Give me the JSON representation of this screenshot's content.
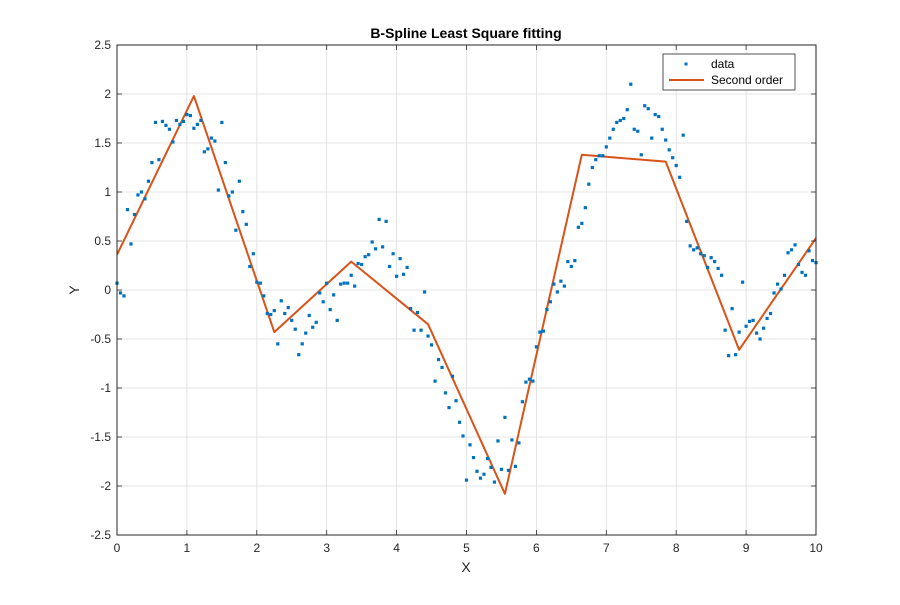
{
  "chart_data": {
    "type": "line",
    "title": "B-Spline Least Square fitting",
    "xlabel": "X",
    "ylabel": "Y",
    "xlim": [
      0,
      10
    ],
    "ylim": [
      -2.5,
      2.5
    ],
    "xticks": [
      0,
      1,
      2,
      3,
      4,
      5,
      6,
      7,
      8,
      9,
      10
    ],
    "yticks": [
      2.5,
      2,
      1.5,
      1,
      0.5,
      0,
      -0.5,
      -1,
      -1.5,
      -2,
      -2.5
    ],
    "xtick_labels": [
      "0",
      "1",
      "2",
      "3",
      "4",
      "5",
      "6",
      "7",
      "8",
      "9",
      "10"
    ],
    "ytick_labels": [
      "2.5",
      "2",
      "1.5",
      "1",
      "0.5",
      "0",
      "-0.5",
      "-1",
      "-1.5",
      "-2",
      "-2.5"
    ],
    "grid": true,
    "legend_position": "top-right",
    "legend": [
      "data",
      "Second order"
    ],
    "series": [
      {
        "name": "data",
        "type": "scatter",
        "color": "#0072BD",
        "x": [
          0.0,
          0.05,
          0.1,
          0.15,
          0.2,
          0.25,
          0.3,
          0.35,
          0.4,
          0.45,
          0.5,
          0.55,
          0.6,
          0.65,
          0.7,
          0.75,
          0.8,
          0.85,
          0.9,
          0.95,
          1.0,
          1.05,
          1.1,
          1.15,
          1.2,
          1.25,
          1.3,
          1.35,
          1.4,
          1.45,
          1.5,
          1.55,
          1.6,
          1.65,
          1.7,
          1.75,
          1.8,
          1.85,
          1.9,
          1.95,
          2.0,
          2.05,
          2.1,
          2.15,
          2.2,
          2.25,
          2.3,
          2.35,
          2.4,
          2.45,
          2.5,
          2.55,
          2.6,
          2.65,
          2.7,
          2.75,
          2.8,
          2.85,
          2.9,
          2.95,
          3.0,
          3.05,
          3.1,
          3.15,
          3.2,
          3.25,
          3.3,
          3.35,
          3.4,
          3.45,
          3.5,
          3.55,
          3.6,
          3.65,
          3.7,
          3.75,
          3.8,
          3.85,
          3.9,
          3.95,
          4.0,
          4.05,
          4.1,
          4.15,
          4.2,
          4.25,
          4.3,
          4.35,
          4.4,
          4.45,
          4.5,
          4.55,
          4.6,
          4.65,
          4.7,
          4.75,
          4.8,
          4.85,
          4.9,
          4.95,
          5.0,
          5.05,
          5.1,
          5.15,
          5.2,
          5.25,
          5.3,
          5.35,
          5.4,
          5.45,
          5.5,
          5.55,
          5.6,
          5.65,
          5.7,
          5.75,
          5.8,
          5.85,
          5.9,
          5.95,
          6.0,
          6.05,
          6.1,
          6.15,
          6.2,
          6.25,
          6.3,
          6.35,
          6.4,
          6.45,
          6.5,
          6.55,
          6.6,
          6.65,
          6.7,
          6.75,
          6.8,
          6.85,
          6.9,
          6.95,
          7.0,
          7.05,
          7.1,
          7.15,
          7.2,
          7.25,
          7.3,
          7.35,
          7.4,
          7.45,
          7.5,
          7.55,
          7.6,
          7.65,
          7.7,
          7.75,
          7.8,
          7.85,
          7.9,
          7.95,
          8.0,
          8.05,
          8.1,
          8.15,
          8.2,
          8.25,
          8.3,
          8.35,
          8.4,
          8.45,
          8.5,
          8.55,
          8.6,
          8.65,
          8.7,
          8.75,
          8.8,
          8.85,
          8.9,
          8.95,
          9.0,
          9.05,
          9.1,
          9.15,
          9.2,
          9.25,
          9.3,
          9.35,
          9.4,
          9.45,
          9.5,
          9.55,
          9.6,
          9.65,
          9.7,
          9.75,
          9.8,
          9.85,
          9.9,
          9.95,
          10.0
        ],
        "y": [
          0.07,
          -0.03,
          -0.06,
          0.82,
          0.47,
          0.77,
          0.97,
          1.0,
          0.93,
          1.11,
          1.3,
          1.71,
          1.33,
          1.72,
          1.68,
          1.64,
          1.51,
          1.73,
          1.69,
          1.72,
          1.79,
          1.78,
          1.65,
          1.69,
          1.73,
          1.41,
          1.44,
          1.55,
          1.52,
          1.02,
          1.71,
          1.3,
          0.96,
          1.0,
          0.61,
          1.11,
          0.8,
          0.67,
          0.24,
          0.37,
          0.08,
          0.07,
          -0.06,
          -0.24,
          -0.25,
          -0.21,
          -0.55,
          -0.11,
          -0.24,
          -0.18,
          -0.31,
          -0.4,
          -0.66,
          -0.55,
          -0.44,
          -0.26,
          -0.38,
          -0.33,
          -0.03,
          -0.12,
          0.07,
          -0.2,
          -0.05,
          -0.31,
          0.06,
          0.07,
          0.07,
          0.15,
          0.04,
          0.27,
          0.26,
          0.34,
          0.36,
          0.49,
          0.42,
          0.72,
          0.44,
          0.7,
          0.24,
          0.37,
          0.14,
          0.32,
          0.16,
          0.23,
          -0.19,
          -0.41,
          -0.23,
          -0.41,
          -0.02,
          -0.47,
          -0.56,
          -0.93,
          -0.71,
          -0.79,
          -1.05,
          -1.2,
          -0.88,
          -1.13,
          -1.35,
          -1.49,
          -1.94,
          -1.58,
          -1.71,
          -1.85,
          -1.92,
          -1.88,
          -1.72,
          -1.81,
          -1.96,
          -1.54,
          -1.83,
          -1.3,
          -1.84,
          -1.53,
          -1.8,
          -1.56,
          -1.14,
          -0.94,
          -0.91,
          -0.93,
          -0.58,
          -0.43,
          -0.42,
          -0.2,
          -0.12,
          0.06,
          -0.02,
          0.09,
          0.04,
          0.29,
          0.24,
          0.3,
          0.64,
          0.68,
          0.84,
          1.08,
          1.25,
          1.33,
          1.37,
          1.37,
          1.46,
          1.55,
          1.64,
          1.71,
          1.73,
          1.75,
          1.84,
          2.1,
          1.64,
          1.62,
          1.38,
          1.88,
          1.85,
          1.55,
          1.79,
          1.77,
          1.64,
          1.53,
          1.43,
          1.35,
          1.27,
          1.15,
          1.58,
          0.7,
          0.45,
          0.41,
          0.43,
          0.37,
          0.35,
          0.23,
          0.33,
          0.29,
          0.22,
          0.15,
          -0.41,
          -0.67,
          -0.19,
          -0.66,
          -0.43,
          0.08,
          -0.37,
          -0.32,
          -0.31,
          -0.44,
          -0.5,
          -0.39,
          -0.29,
          -0.24,
          -0.03,
          0.06,
          0.01,
          0.15,
          0.38,
          0.41,
          0.46,
          0.26,
          0.18,
          0.15,
          0.4,
          0.3,
          0.28
        ]
      },
      {
        "name": "Second order",
        "type": "line",
        "color": "#D95319",
        "x": [
          0.0,
          1.1,
          2.25,
          3.35,
          4.45,
          5.55,
          6.65,
          7.85,
          8.9,
          10.0
        ],
        "y": [
          0.36,
          1.98,
          -0.43,
          0.29,
          -0.35,
          -2.08,
          1.38,
          1.31,
          -0.61,
          0.53
        ]
      }
    ]
  }
}
